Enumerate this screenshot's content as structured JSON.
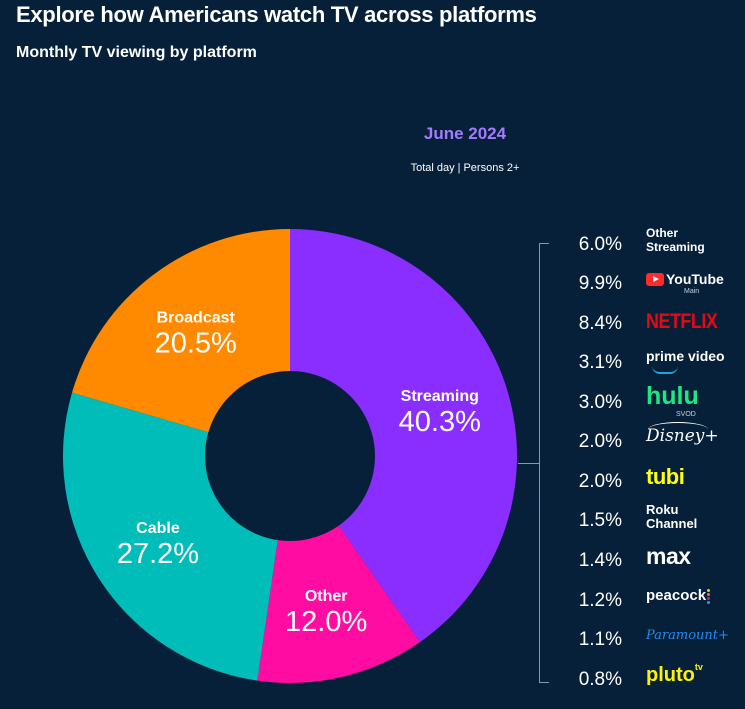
{
  "header": {
    "title": "Explore how Americans watch TV across platforms",
    "subtitle": "Monthly TV viewing by platform"
  },
  "chart_header": {
    "period": "June 2024",
    "caption_left": "Total day",
    "caption_sep": "|",
    "caption_right": "Persons 2+"
  },
  "chart_data": {
    "type": "pie",
    "donut": true,
    "title": "June 2024",
    "subtitle": "Total day | Persons 2+",
    "slices": [
      {
        "label": "Streaming",
        "value": 40.3,
        "display": "40.3%",
        "color": "#8a2eff"
      },
      {
        "label": "Other",
        "value": 12.0,
        "display": "12.0%",
        "color": "#ff0da2"
      },
      {
        "label": "Cable",
        "value": 27.2,
        "display": "27.2%",
        "color": "#00bdb9"
      },
      {
        "label": "Broadcast",
        "value": 20.5,
        "display": "20.5%",
        "color": "#ff8a00"
      }
    ],
    "streaming_breakdown": [
      {
        "label": "Other Streaming",
        "value": 6.0,
        "display": "6.0%"
      },
      {
        "label": "YouTube Main",
        "value": 9.9,
        "display": "9.9%"
      },
      {
        "label": "Netflix",
        "value": 8.4,
        "display": "8.4%"
      },
      {
        "label": "prime video",
        "value": 3.1,
        "display": "3.1%"
      },
      {
        "label": "hulu SVOD",
        "value": 3.0,
        "display": "3.0%"
      },
      {
        "label": "Disney+",
        "value": 2.0,
        "display": "2.0%"
      },
      {
        "label": "tubi",
        "value": 2.0,
        "display": "2.0%"
      },
      {
        "label": "Roku Channel",
        "value": 1.5,
        "display": "1.5%"
      },
      {
        "label": "max",
        "value": 1.4,
        "display": "1.4%"
      },
      {
        "label": "peacock",
        "value": 1.2,
        "display": "1.2%"
      },
      {
        "label": "Paramount+",
        "value": 1.1,
        "display": "1.1%"
      },
      {
        "label": "pluto tv",
        "value": 0.8,
        "display": "0.8%"
      }
    ]
  },
  "brands": {
    "other_streaming": "Other\nStreaming",
    "youtube": "YouTube",
    "youtube_sub": "Main",
    "netflix": "NETFLIX",
    "prime": "prime video",
    "hulu": "hulu",
    "hulu_sub": "SVOD",
    "disney": "Disney+",
    "tubi": "tubi",
    "roku": "Roku\nChannel",
    "max": "max",
    "peacock": "peacock",
    "paramount": "Paramount+",
    "pluto": "pluto",
    "pluto_sup": "tv"
  },
  "colors": {
    "background": "#06203a",
    "accent": "#a47bff"
  },
  "icons": {
    "youtube": "youtube-play-icon",
    "peacock": "peacock-dots-icon"
  }
}
